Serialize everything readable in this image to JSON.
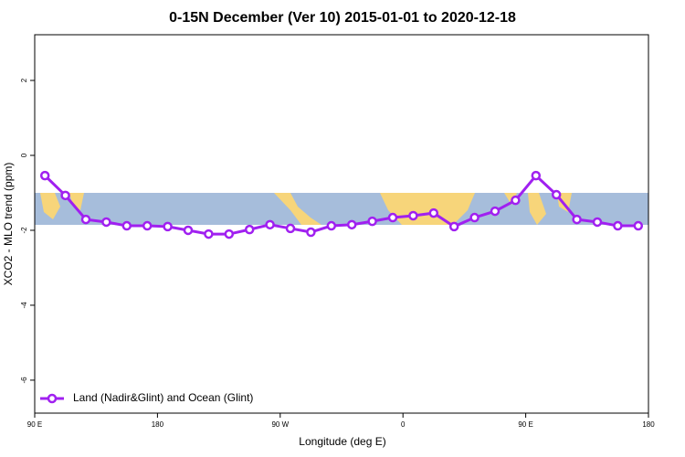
{
  "chart_data": {
    "type": "line",
    "title": "0-15N December (Ver 10)   2015-01-01 to 2020-12-18",
    "x_label": "Longitude (deg E)",
    "y_label": "XCO2 - MLO trend (ppm)",
    "x": [
      97.5,
      112.5,
      127.5,
      142.5,
      157.5,
      172.5,
      187.5,
      202.5,
      217.5,
      232.5,
      247.5,
      262.5,
      277.5,
      292.5,
      307.5,
      322.5,
      337.5,
      352.5,
      367.5,
      382.5,
      397.5,
      412.5,
      427.5,
      442.5,
      457.5,
      472.5,
      487.5,
      502.5,
      517.5,
      532.5
    ],
    "series": [
      {
        "name": "Land (Nadir&Glint) and Ocean (Glint)",
        "color": "#a020f0",
        "values": [
          -0.54,
          -1.07,
          -1.71,
          -1.78,
          -1.88,
          -1.88,
          -1.9,
          -2.0,
          -2.1,
          -2.1,
          -1.98,
          -1.85,
          -1.95,
          -2.05,
          -1.88,
          -1.85,
          -1.76,
          -1.66,
          -1.61,
          -1.54,
          -1.9,
          -1.66,
          -1.49,
          -1.2,
          -0.54,
          -1.05,
          -1.71,
          -1.78,
          -1.88,
          -1.88
        ]
      }
    ],
    "xlim": [
      90,
      540
    ],
    "xticks": [
      {
        "value": 90,
        "label": "90 E"
      },
      {
        "value": 180,
        "label": "180"
      },
      {
        "value": 270,
        "label": "90 W"
      },
      {
        "value": 360,
        "label": "0"
      },
      {
        "value": 450,
        "label": "90 E"
      },
      {
        "value": 540,
        "label": "180"
      }
    ],
    "ylim": [
      -6.88,
      3.22
    ],
    "yticks": [
      2,
      0,
      -2,
      -4,
      -6
    ],
    "legend": "bottom-left"
  }
}
